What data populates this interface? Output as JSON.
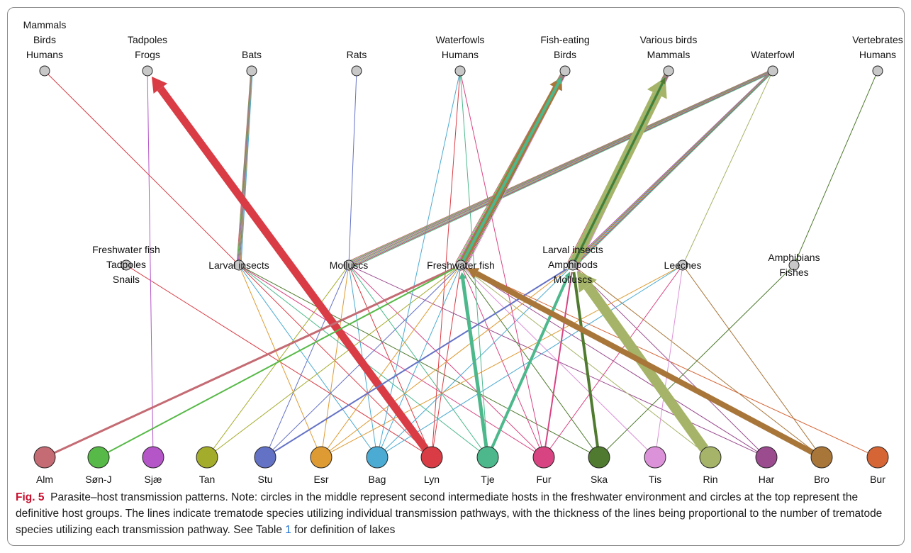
{
  "figure": {
    "label": "Fig. 5",
    "caption_a": "Parasite–host transmission patterns. Note: circles in the middle represent second intermediate hosts in the freshwater environment and circles at the top represent the definitive host groups. The lines indicate trematode species utilizing individual transmission pathways, with the thickness of the lines being proportional to the number of trematode species utilizing each transmission pathway. See Table ",
    "caption_ref": "1",
    "caption_b": " for definition of lakes"
  },
  "nodes": {
    "definitive": [
      {
        "id": "d1",
        "label": [
          "Mammals",
          "Birds",
          "Humans"
        ]
      },
      {
        "id": "d2",
        "label": [
          "Tadpoles",
          "Frogs"
        ]
      },
      {
        "id": "d3",
        "label": [
          "Bats"
        ]
      },
      {
        "id": "d4",
        "label": [
          "Rats"
        ]
      },
      {
        "id": "d5",
        "label": [
          "Waterfowls",
          "Humans"
        ]
      },
      {
        "id": "d6",
        "label": [
          "Fish-eating",
          "Birds"
        ]
      },
      {
        "id": "d7",
        "label": [
          "Various birds",
          "Mammals"
        ]
      },
      {
        "id": "d8",
        "label": [
          "Waterfowl"
        ]
      },
      {
        "id": "d9",
        "label": [
          "Vertebrates",
          "Humans"
        ]
      }
    ],
    "intermediate": [
      {
        "id": "i1",
        "label": [
          "Freshwater fish",
          "Tadpoles",
          "Snails"
        ]
      },
      {
        "id": "i2",
        "label": [
          "Larval insects"
        ]
      },
      {
        "id": "i3",
        "label": [
          "Molluscs"
        ]
      },
      {
        "id": "i4",
        "label": [
          "Freshwater fish"
        ]
      },
      {
        "id": "i5",
        "label": [
          "Larval insects",
          "Amphipods",
          "Molluscs"
        ]
      },
      {
        "id": "i6",
        "label": [
          "Leeches"
        ]
      },
      {
        "id": "i7",
        "label": [
          "Amphibians",
          "Fishes"
        ]
      }
    ],
    "lakes": [
      {
        "id": "Alm",
        "label": "Alm",
        "color": "#c46b73"
      },
      {
        "id": "SonJ",
        "label": "Søn-J",
        "color": "#57b947"
      },
      {
        "id": "Sjae",
        "label": "Sjæ",
        "color": "#b456c8"
      },
      {
        "id": "Tan",
        "label": "Tan",
        "color": "#a4ac2b"
      },
      {
        "id": "Stu",
        "label": "Stu",
        "color": "#6472c6"
      },
      {
        "id": "Esr",
        "label": "Esr",
        "color": "#de9b33"
      },
      {
        "id": "Bag",
        "label": "Bag",
        "color": "#4cabd2"
      },
      {
        "id": "Lyn",
        "label": "Lyn",
        "color": "#d93c45"
      },
      {
        "id": "Tje",
        "label": "Tje",
        "color": "#4cb88c"
      },
      {
        "id": "Fur",
        "label": "Fur",
        "color": "#d84482"
      },
      {
        "id": "Ska",
        "label": "Ska",
        "color": "#4f7a2f"
      },
      {
        "id": "Tis",
        "label": "Tis",
        "color": "#dc92d8"
      },
      {
        "id": "Rin",
        "label": "Rin",
        "color": "#a5b468"
      },
      {
        "id": "Har",
        "label": "Har",
        "color": "#9a4c8f"
      },
      {
        "id": "Bro",
        "label": "Bro",
        "color": "#a9763a"
      },
      {
        "id": "Bur",
        "label": "Bur",
        "color": "#d66536"
      }
    ]
  },
  "links": [
    {
      "from": "Lyn",
      "to": "d2",
      "weight": 11,
      "color": "#d93c45",
      "arrow": true
    },
    {
      "from": "Alm",
      "to": "i4",
      "weight": 3,
      "color": "#c46b73"
    },
    {
      "from": "SonJ",
      "to": "i4",
      "weight": 2,
      "color": "#57b947"
    },
    {
      "from": "Stu",
      "to": "i5",
      "weight": 2,
      "color": "#6472c6"
    },
    {
      "from": "Tje",
      "to": "i4",
      "weight": 5,
      "color": "#4cb88c",
      "arrow": true
    },
    {
      "from": "Tje",
      "to": "i5",
      "weight": 4,
      "color": "#4cb88c",
      "arrow": true
    },
    {
      "from": "Fur",
      "to": "i5",
      "weight": 2,
      "color": "#d84482"
    },
    {
      "from": "Ska",
      "to": "i5",
      "weight": 4,
      "color": "#4f7a2f"
    },
    {
      "from": "Rin",
      "to": "i5",
      "weight": 14,
      "color": "#a5b468",
      "arrow": true
    },
    {
      "from": "Bro",
      "to": "i4",
      "weight": 8,
      "color": "#a9763a",
      "arrow": true
    },
    {
      "from": "i4",
      "to": "d6",
      "weight": 9,
      "color": "#a9763a",
      "arrow": true
    },
    {
      "from": "i5",
      "to": "d7",
      "weight": 14,
      "color": "#a5b468",
      "arrow": true
    },
    {
      "from": "i5",
      "to": "d7",
      "weight": 4,
      "color": "#4cb88c",
      "arrow": true
    },
    {
      "from": "i5",
      "to": "d7",
      "weight": 3,
      "color": "#4f7a2f",
      "arrow": true
    },
    {
      "from": "i4",
      "to": "d6",
      "weight": 4,
      "color": "#4cb88c",
      "arrow": true
    }
  ]
}
